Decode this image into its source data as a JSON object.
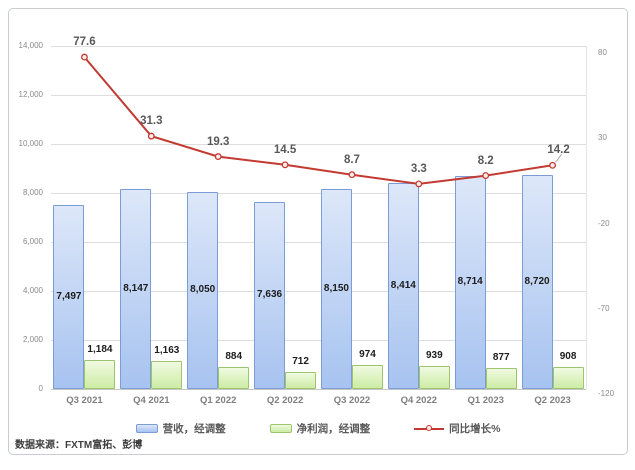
{
  "chart_data": {
    "type": "combo",
    "categories": [
      "Q3 2021",
      "Q4 2021",
      "Q1 2022",
      "Q2 2022",
      "Q3 2022",
      "Q4 2022",
      "Q1 2023",
      "Q2 2023"
    ],
    "series": [
      {
        "name": "营收，经调整",
        "chart_type": "bar",
        "axis": "primary",
        "label_position": "center",
        "values": [
          7497,
          8147,
          8050,
          7636,
          8150,
          8414,
          8714,
          8720
        ],
        "value_labels": [
          "7,497",
          "8,147",
          "8,050",
          "7,636",
          "8,150",
          "8,414",
          "8,714",
          "8,720"
        ],
        "fill_top": "#dde7f9",
        "fill_bottom": "#a7c3f0",
        "border_color": "#7b9cd4"
      },
      {
        "name": "净利润，经调整",
        "chart_type": "bar",
        "axis": "primary",
        "label_position": "above",
        "values": [
          1184,
          1163,
          884,
          712,
          974,
          939,
          877,
          908
        ],
        "value_labels": [
          "1,184",
          "1,163",
          "884",
          "712",
          "974",
          "939",
          "877",
          "908"
        ],
        "fill_top": "#f0fae1",
        "fill_bottom": "#cdeca5",
        "border_color": "#9dc56d"
      },
      {
        "name": "同比增长%",
        "chart_type": "line",
        "axis": "secondary",
        "values": [
          77.6,
          31.3,
          19.3,
          14.5,
          8.7,
          3.3,
          8.2,
          14.2
        ],
        "value_labels": [
          "77.6",
          "31.3",
          "19.3",
          "14.5",
          "8.7",
          "3.3",
          "8.2",
          "14.2"
        ],
        "color": "#c23a32",
        "marker_fill": "#fdecea"
      }
    ],
    "primary_axis": {
      "min": 0,
      "max": 14000,
      "tick_labels": [
        "14,000",
        "12,000",
        "10,000",
        "8,000",
        "6,000",
        "4,000",
        "2,000",
        "0"
      ]
    },
    "secondary_axis": {
      "tick_labels": [
        "80",
        "30",
        "-20",
        "-70",
        "-120"
      ],
      "tick_values": [
        80,
        30,
        -20,
        -70,
        -120
      ]
    },
    "legend_position": "bottom",
    "grid": "horizontal",
    "source_note": "数据来源：FXTM富拓、彭博"
  }
}
